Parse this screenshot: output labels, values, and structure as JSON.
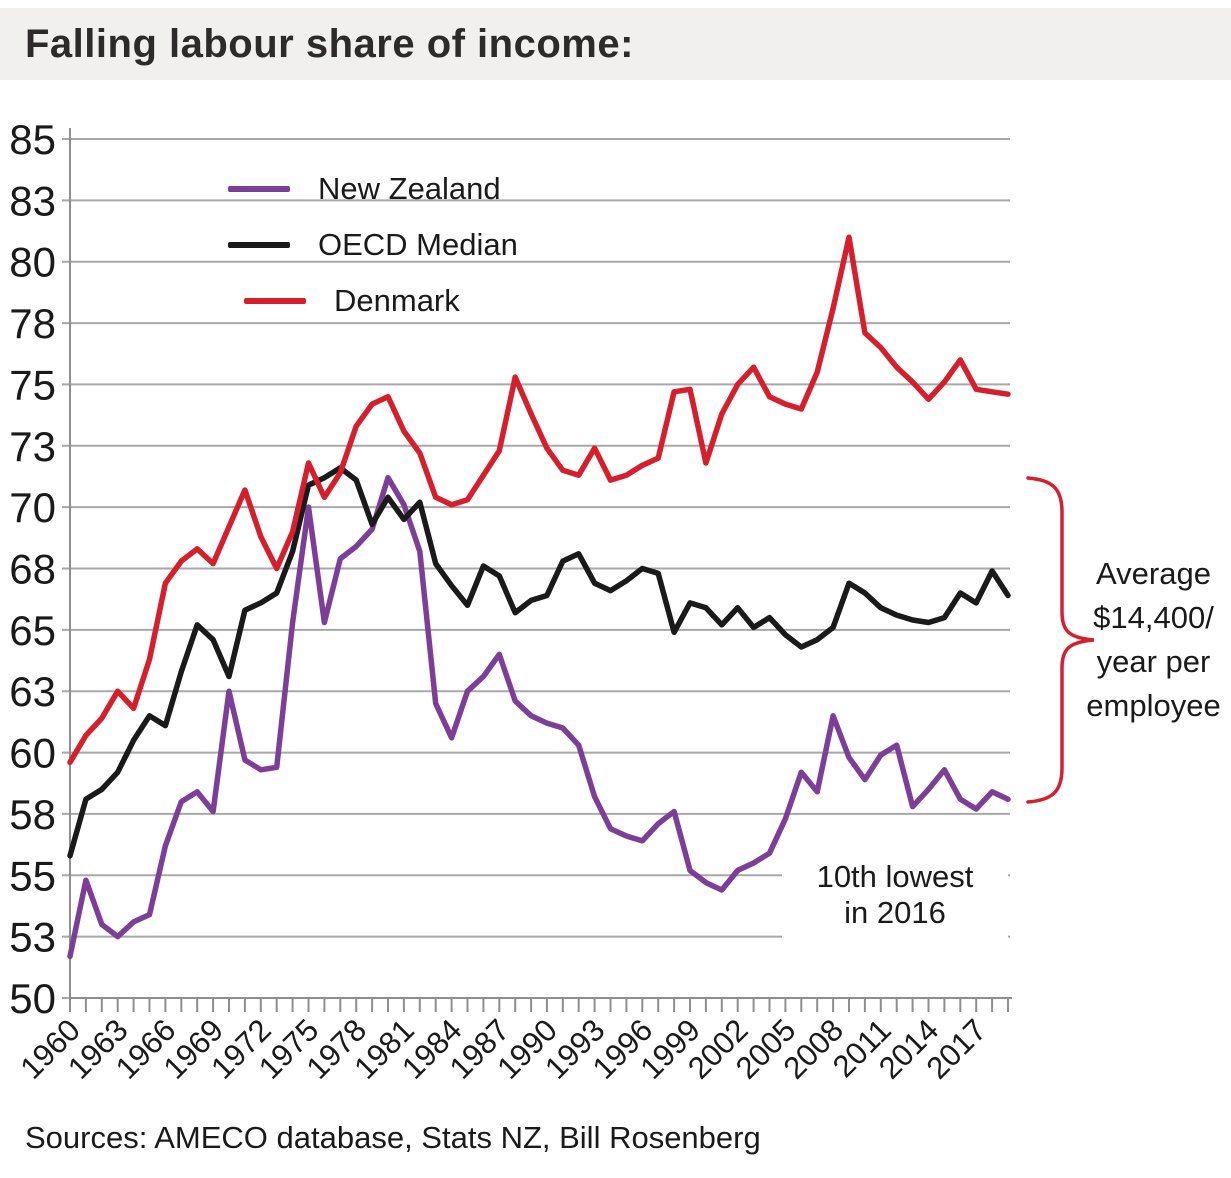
{
  "title": "Falling labour share of income:",
  "source_note": "Sources: AMECO database, Stats NZ, Bill Rosenberg",
  "colors": {
    "new_zealand": "#7D3E98",
    "oecd_median": "#1A1A1A",
    "denmark": "#D51F2D",
    "grid": "#A8A8A8",
    "axis": "#8E8E8E",
    "banner": "#F1F0EE"
  },
  "chart_data": {
    "type": "line",
    "title": "Falling labour share of income:",
    "xlabel": "",
    "ylabel": "",
    "ylim": [
      50,
      85
    ],
    "xlim": [
      1960,
      2019
    ],
    "grid": "horizontal",
    "legend_position": "top-left",
    "y_axis": {
      "gridline_values": [
        85,
        82.5,
        80,
        77.5,
        75,
        72.5,
        70,
        67.5,
        65,
        62.5,
        60,
        57.5,
        55,
        52.5,
        50
      ],
      "tick_labels": [
        "85",
        "83",
        "80",
        "78",
        "75",
        "73",
        "70",
        "68",
        "65",
        "63",
        "60",
        "58",
        "55",
        "53",
        "50"
      ]
    },
    "x_axis": {
      "tick_every_year": true,
      "tick_labels": [
        1960,
        1963,
        1966,
        1969,
        1972,
        1975,
        1978,
        1981,
        1984,
        1987,
        1990,
        1993,
        1996,
        1999,
        2002,
        2005,
        2008,
        2011,
        2014,
        2017
      ]
    },
    "x": [
      1960,
      1961,
      1962,
      1963,
      1964,
      1965,
      1966,
      1967,
      1968,
      1969,
      1970,
      1971,
      1972,
      1973,
      1974,
      1975,
      1976,
      1977,
      1978,
      1979,
      1980,
      1981,
      1982,
      1983,
      1984,
      1985,
      1986,
      1987,
      1988,
      1989,
      1990,
      1991,
      1992,
      1993,
      1994,
      1995,
      1996,
      1997,
      1998,
      1999,
      2000,
      2001,
      2002,
      2003,
      2004,
      2005,
      2006,
      2007,
      2008,
      2009,
      2010,
      2011,
      2012,
      2013,
      2014,
      2015,
      2016,
      2017,
      2018,
      2019
    ],
    "series": [
      {
        "name": "New Zealand",
        "color": "new_zealand",
        "values": [
          51.7,
          54.8,
          53.0,
          52.5,
          53.1,
          53.4,
          56.2,
          58.0,
          58.4,
          57.6,
          62.5,
          59.7,
          59.3,
          59.4,
          65.3,
          70.0,
          65.3,
          67.9,
          68.4,
          69.1,
          71.2,
          70.1,
          68.2,
          62.0,
          60.6,
          62.5,
          63.1,
          64.0,
          62.1,
          61.5,
          61.2,
          61.0,
          60.3,
          58.2,
          56.9,
          56.6,
          56.4,
          57.1,
          57.6,
          55.2,
          54.7,
          54.4,
          55.2,
          55.5,
          55.9,
          57.3,
          59.2,
          58.4,
          61.5,
          59.8,
          58.9,
          59.9,
          60.3,
          57.8,
          58.5,
          59.3,
          58.1,
          57.7,
          58.4,
          58.1
        ]
      },
      {
        "name": "OECD Median",
        "color": "oecd_median",
        "values": [
          55.8,
          58.1,
          58.5,
          59.2,
          60.5,
          61.5,
          61.1,
          63.3,
          65.2,
          64.6,
          63.1,
          65.8,
          66.1,
          66.5,
          68.2,
          70.9,
          71.2,
          71.6,
          71.1,
          69.3,
          70.4,
          69.5,
          70.2,
          67.7,
          66.8,
          66.0,
          67.6,
          67.2,
          65.7,
          66.2,
          66.4,
          67.8,
          68.1,
          66.9,
          66.6,
          67.0,
          67.5,
          67.3,
          64.9,
          66.1,
          65.9,
          65.2,
          65.9,
          65.1,
          65.5,
          64.8,
          64.3,
          64.6,
          65.1,
          66.9,
          66.5,
          65.9,
          65.6,
          65.4,
          65.3,
          65.5,
          66.5,
          66.1,
          67.4,
          66.4
        ]
      },
      {
        "name": "Denmark",
        "color": "denmark",
        "values": [
          59.6,
          60.7,
          61.4,
          62.5,
          61.8,
          63.8,
          66.9,
          67.8,
          68.3,
          67.7,
          69.2,
          70.7,
          68.8,
          67.5,
          69.0,
          71.8,
          70.4,
          71.4,
          73.3,
          74.2,
          74.5,
          73.1,
          72.2,
          70.4,
          70.1,
          70.3,
          71.3,
          72.3,
          75.3,
          73.8,
          72.4,
          71.5,
          71.3,
          72.4,
          71.1,
          71.3,
          71.7,
          72.0,
          74.7,
          74.8,
          71.8,
          73.8,
          75.0,
          75.7,
          74.5,
          74.2,
          74.0,
          75.5,
          78.1,
          81.0,
          77.1,
          76.5,
          75.7,
          75.1,
          74.4,
          75.1,
          76.0,
          74.8,
          74.7,
          74.6
        ]
      }
    ],
    "annotations": {
      "nz_note": {
        "lines": [
          "10th lowest",
          "in 2016"
        ]
      },
      "income_gap": {
        "lines": [
          "Average",
          "$14,400/",
          "year per",
          "employee"
        ]
      }
    }
  }
}
